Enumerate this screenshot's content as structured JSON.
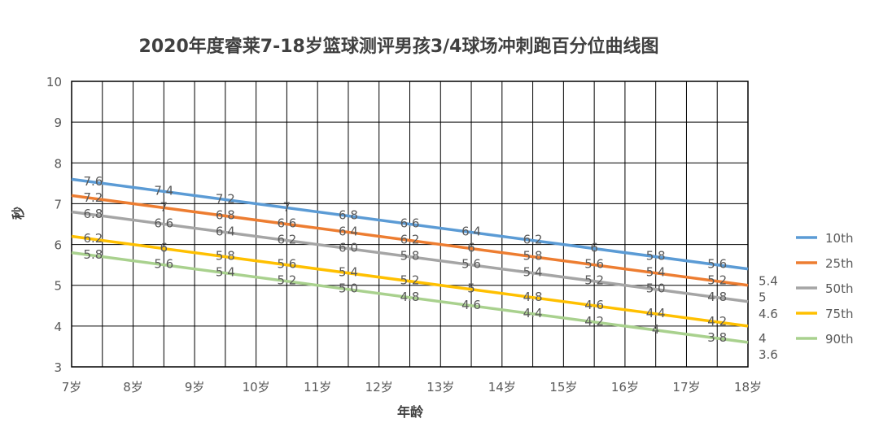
{
  "chart_data": {
    "type": "line",
    "title": "2020年度睿莱7-18岁篮球测评男孩3/4球场冲刺跑百分位曲线图",
    "xlabel": "年龄",
    "ylabel": "秒",
    "categories": [
      "7岁",
      "8岁",
      "9岁",
      "10岁",
      "11岁",
      "12岁",
      "13岁",
      "14岁",
      "15岁",
      "16岁",
      "17岁",
      "18岁"
    ],
    "ylim": [
      3,
      10
    ],
    "yticks": [
      "3",
      "4",
      "5",
      "6",
      "7",
      "8",
      "9",
      "10"
    ],
    "grid": true,
    "legend_position": "right",
    "series": [
      {
        "name": "10th",
        "color": "#5B9BD5",
        "start": 7.6,
        "end": 5.4,
        "labels": [
          "7.6",
          "7.4",
          "7.2",
          "7",
          "6.8",
          "6.6",
          "6.4",
          "6.2",
          "6",
          "5.8",
          "5.6",
          "5.4"
        ]
      },
      {
        "name": "25th",
        "color": "#ED7D31",
        "start": 7.2,
        "end": 5.0,
        "labels": [
          "7.2",
          "7",
          "6.8",
          "6.6",
          "6.4",
          "6.2",
          "6",
          "5.8",
          "5.6",
          "5.4",
          "5.2",
          "5"
        ]
      },
      {
        "name": "50th",
        "color": "#A5A5A5",
        "start": 6.8,
        "end": 4.6,
        "labels": [
          "6.8",
          "6.6",
          "6.4",
          "6.2",
          "6.0",
          "5.8",
          "5.6",
          "5.4",
          "5.2",
          "5.0",
          "4.8",
          "4.6"
        ]
      },
      {
        "name": "75th",
        "color": "#FFC000",
        "start": 6.2,
        "end": 4.0,
        "labels": [
          "6.2",
          "6",
          "5.8",
          "5.6",
          "5.4",
          "5.2",
          "5",
          "4.8",
          "4.6",
          "4.4",
          "4.2",
          "4"
        ]
      },
      {
        "name": "90th",
        "color": "#A9D18E",
        "start": 5.8,
        "end": 3.6,
        "labels": [
          "5.8",
          "5.6",
          "5.4",
          "5.2",
          "5.0",
          "4.8",
          "4.6",
          "4.4",
          "4.2",
          "4",
          "3.8",
          "3.6"
        ]
      }
    ]
  }
}
